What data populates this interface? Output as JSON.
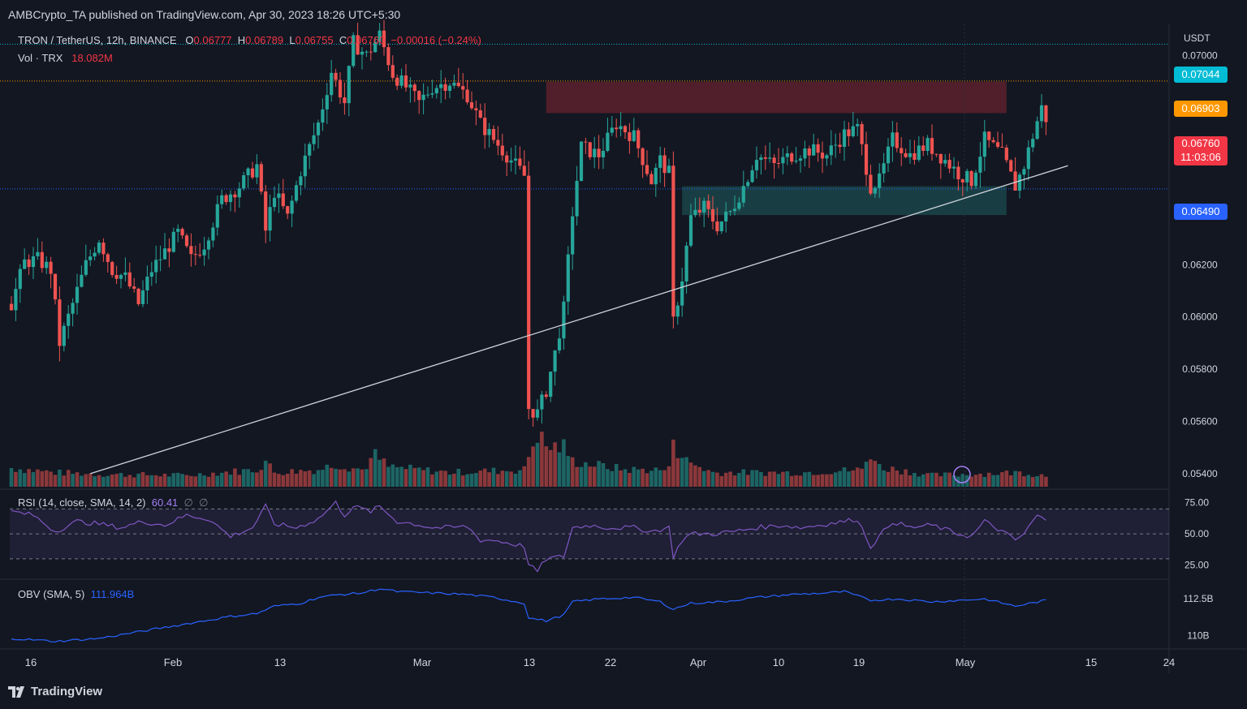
{
  "publisher": "AMBCrypto_TA published on TradingView.com, Apr 30, 2023 18:26 UTC+5:30",
  "symbol": {
    "title": "TRON / TetherUS, 12h, BINANCE",
    "o_label": "O",
    "o": "0.06777",
    "h_label": "H",
    "h": "0.06789",
    "l_label": "L",
    "l": "0.06755",
    "c_label": "C",
    "c": "0.06760",
    "change": "−0.00016 (−0.24%)"
  },
  "volume": {
    "label": "Vol · TRX",
    "value": "18.082M"
  },
  "rsi": {
    "label": "RSI (14, close, SMA, 14, 2)",
    "value": "60.41",
    "extra1": "∅",
    "extra2": "∅"
  },
  "obv": {
    "label": "OBV (SMA, 5)",
    "value": "111.964B"
  },
  "axis": {
    "currency": "USDT",
    "price_ticks": [
      "0.07000",
      "0.06800",
      "0.06600",
      "0.06400",
      "0.06200",
      "0.06000",
      "0.05800",
      "0.05600",
      "0.05400"
    ],
    "rsi_ticks": [
      "75.00",
      "50.00",
      "25.00"
    ],
    "obv_ticks": [
      "112.5B",
      "110B"
    ],
    "time_ticks": [
      "16",
      "Feb",
      "13",
      "Mar",
      "13",
      "22",
      "Apr",
      "10",
      "19",
      "May",
      "15",
      "24"
    ]
  },
  "price_tags": {
    "cyan": {
      "value": "0.07044",
      "color": "#00bcd4"
    },
    "orange": {
      "value": "0.06903",
      "color": "#ff9800"
    },
    "current": {
      "value": "0.06760",
      "countdown": "11:03:06",
      "color": "#f23645"
    },
    "blue": {
      "value": "0.06490",
      "color": "#2962ff"
    }
  },
  "colors": {
    "up": "#26a69a",
    "down": "#ef5350",
    "rsi": "#7e57c2",
    "obv": "#2962ff",
    "bg": "#131722"
  },
  "brand": "TradingView",
  "chart_data": {
    "type": "candlestick",
    "timeframe": "12h",
    "ylim": [
      0.0535,
      0.0712
    ],
    "resistance_zone": [
      0.0678,
      0.069
    ],
    "support_zone": [
      0.0639,
      0.065
    ],
    "horizontal_levels": [
      0.07044,
      0.06903,
      0.0649
    ],
    "trendline": {
      "from_bar": 18,
      "from_price": 0.054,
      "to_bar": 241,
      "to_price": 0.06579
    },
    "anchor_close": [
      [
        0,
        0.0605
      ],
      [
        3,
        0.0621
      ],
      [
        6,
        0.0622
      ],
      [
        9,
        0.0618
      ],
      [
        11,
        0.059
      ],
      [
        14,
        0.0605
      ],
      [
        17,
        0.062
      ],
      [
        20,
        0.063
      ],
      [
        23,
        0.0618
      ],
      [
        26,
        0.0615
      ],
      [
        29,
        0.0605
      ],
      [
        32,
        0.0618
      ],
      [
        35,
        0.0625
      ],
      [
        38,
        0.0632
      ],
      [
        41,
        0.0622
      ],
      [
        44,
        0.0628
      ],
      [
        48,
        0.0645
      ],
      [
        52,
        0.065
      ],
      [
        56,
        0.0658
      ],
      [
        58,
        0.0633
      ],
      [
        60,
        0.0648
      ],
      [
        63,
        0.0638
      ],
      [
        66,
        0.0656
      ],
      [
        70,
        0.0674
      ],
      [
        73,
        0.0694
      ],
      [
        76,
        0.0682
      ],
      [
        78,
        0.0705
      ],
      [
        81,
        0.07
      ],
      [
        84,
        0.0708
      ],
      [
        87,
        0.0693
      ],
      [
        90,
        0.0688
      ],
      [
        93,
        0.0682
      ],
      [
        96,
        0.0688
      ],
      [
        100,
        0.069
      ],
      [
        104,
        0.0685
      ],
      [
        107,
        0.0674
      ],
      [
        110,
        0.0668
      ],
      [
        113,
        0.0662
      ],
      [
        117,
        0.0654
      ],
      [
        118,
        0.0565
      ],
      [
        120,
        0.0563
      ],
      [
        122,
        0.0572
      ],
      [
        124,
        0.0586
      ],
      [
        126,
        0.0603
      ],
      [
        128,
        0.064
      ],
      [
        130,
        0.0665
      ],
      [
        134,
        0.0662
      ],
      [
        138,
        0.0674
      ],
      [
        142,
        0.0669
      ],
      [
        146,
        0.0652
      ],
      [
        148,
        0.066
      ],
      [
        150,
        0.0655
      ],
      [
        151,
        0.0598
      ],
      [
        153,
        0.0615
      ],
      [
        155,
        0.0638
      ],
      [
        158,
        0.0642
      ],
      [
        161,
        0.0635
      ],
      [
        164,
        0.064
      ],
      [
        167,
        0.065
      ],
      [
        170,
        0.0662
      ],
      [
        174,
        0.0658
      ],
      [
        178,
        0.0662
      ],
      [
        182,
        0.0664
      ],
      [
        186,
        0.0662
      ],
      [
        190,
        0.067
      ],
      [
        193,
        0.0672
      ],
      [
        196,
        0.065
      ],
      [
        198,
        0.0652
      ],
      [
        201,
        0.0668
      ],
      [
        205,
        0.0662
      ],
      [
        209,
        0.0666
      ],
      [
        213,
        0.066
      ],
      [
        216,
        0.0655
      ],
      [
        219,
        0.0652
      ],
      [
        222,
        0.0668
      ],
      [
        226,
        0.0662
      ],
      [
        229,
        0.065
      ],
      [
        231,
        0.0658
      ],
      [
        234,
        0.0675
      ],
      [
        235,
        0.068
      ],
      [
        236,
        0.0676
      ]
    ],
    "volume": [
      [
        0,
        0.33
      ],
      [
        10,
        0.25
      ],
      [
        20,
        0.22
      ],
      [
        40,
        0.2
      ],
      [
        56,
        0.3
      ],
      [
        58,
        0.45
      ],
      [
        60,
        0.25
      ],
      [
        70,
        0.3
      ],
      [
        74,
        0.4
      ],
      [
        80,
        0.3
      ],
      [
        83,
        0.55
      ],
      [
        86,
        0.35
      ],
      [
        100,
        0.25
      ],
      [
        117,
        0.3
      ],
      [
        118,
        0.55
      ],
      [
        120,
        0.95
      ],
      [
        122,
        0.7
      ],
      [
        126,
        0.7
      ],
      [
        128,
        0.45
      ],
      [
        140,
        0.3
      ],
      [
        150,
        0.3
      ],
      [
        151,
        0.95
      ],
      [
        152,
        0.65
      ],
      [
        154,
        0.45
      ],
      [
        160,
        0.25
      ],
      [
        180,
        0.25
      ],
      [
        194,
        0.3
      ],
      [
        196,
        0.6
      ],
      [
        198,
        0.35
      ],
      [
        210,
        0.2
      ],
      [
        230,
        0.25
      ],
      [
        236,
        0.2
      ]
    ],
    "rsi": [
      [
        0,
        68
      ],
      [
        5,
        65
      ],
      [
        10,
        52
      ],
      [
        15,
        60
      ],
      [
        20,
        58
      ],
      [
        25,
        55
      ],
      [
        30,
        60
      ],
      [
        35,
        57
      ],
      [
        40,
        65
      ],
      [
        45,
        62
      ],
      [
        50,
        48
      ],
      [
        55,
        55
      ],
      [
        58,
        72
      ],
      [
        60,
        58
      ],
      [
        65,
        55
      ],
      [
        70,
        62
      ],
      [
        74,
        75
      ],
      [
        76,
        65
      ],
      [
        78,
        72
      ],
      [
        82,
        68
      ],
      [
        84,
        72
      ],
      [
        88,
        60
      ],
      [
        92,
        58
      ],
      [
        96,
        55
      ],
      [
        100,
        55
      ],
      [
        104,
        56
      ],
      [
        107,
        45
      ],
      [
        110,
        45
      ],
      [
        113,
        43
      ],
      [
        117,
        40
      ],
      [
        118,
        25
      ],
      [
        120,
        20
      ],
      [
        122,
        30
      ],
      [
        126,
        32
      ],
      [
        128,
        55
      ],
      [
        132,
        57
      ],
      [
        136,
        55
      ],
      [
        142,
        55
      ],
      [
        146,
        52
      ],
      [
        150,
        55
      ],
      [
        151,
        32
      ],
      [
        153,
        45
      ],
      [
        155,
        50
      ],
      [
        160,
        50
      ],
      [
        165,
        52
      ],
      [
        170,
        55
      ],
      [
        176,
        57
      ],
      [
        180,
        55
      ],
      [
        186,
        58
      ],
      [
        190,
        60
      ],
      [
        193,
        62
      ],
      [
        196,
        40
      ],
      [
        198,
        48
      ],
      [
        201,
        60
      ],
      [
        205,
        55
      ],
      [
        210,
        57
      ],
      [
        216,
        50
      ],
      [
        219,
        48
      ],
      [
        222,
        60
      ],
      [
        226,
        52
      ],
      [
        229,
        45
      ],
      [
        231,
        50
      ],
      [
        234,
        65
      ],
      [
        236,
        60
      ]
    ],
    "obv": [
      [
        0,
        109.8
      ],
      [
        10,
        109.6
      ],
      [
        20,
        109.8
      ],
      [
        30,
        110.3
      ],
      [
        40,
        110.8
      ],
      [
        50,
        111.3
      ],
      [
        56,
        111.5
      ],
      [
        60,
        112.0
      ],
      [
        66,
        112.2
      ],
      [
        70,
        112.6
      ],
      [
        75,
        112.8
      ],
      [
        80,
        112.9
      ],
      [
        84,
        113.2
      ],
      [
        88,
        113.0
      ],
      [
        96,
        112.9
      ],
      [
        104,
        112.8
      ],
      [
        110,
        112.6
      ],
      [
        117,
        112.2
      ],
      [
        118,
        111.2
      ],
      [
        122,
        111.0
      ],
      [
        126,
        111.4
      ],
      [
        128,
        112.3
      ],
      [
        134,
        112.5
      ],
      [
        142,
        112.6
      ],
      [
        148,
        112.3
      ],
      [
        151,
        111.8
      ],
      [
        155,
        112.2
      ],
      [
        162,
        112.3
      ],
      [
        170,
        112.6
      ],
      [
        178,
        112.8
      ],
      [
        186,
        112.9
      ],
      [
        190,
        113.0
      ],
      [
        196,
        112.4
      ],
      [
        202,
        112.5
      ],
      [
        210,
        112.3
      ],
      [
        216,
        112.4
      ],
      [
        222,
        112.5
      ],
      [
        229,
        112.0
      ],
      [
        236,
        112.4
      ]
    ]
  }
}
